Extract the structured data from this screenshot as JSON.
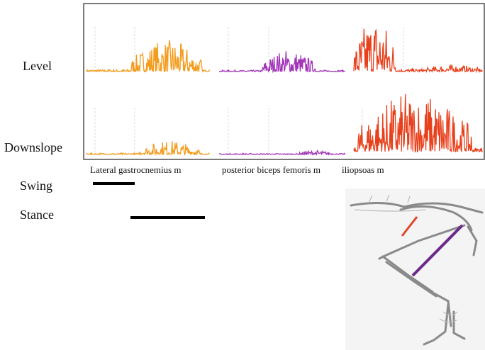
{
  "rows": {
    "level": "Level",
    "downslope": "Downslope"
  },
  "muscles": {
    "m1": "Lateral gastrocnemius m",
    "m2": "posterior biceps femoris m",
    "m3": "iliopsoas m"
  },
  "phases": {
    "swing": "Swing",
    "stance": "Stance"
  }
}
